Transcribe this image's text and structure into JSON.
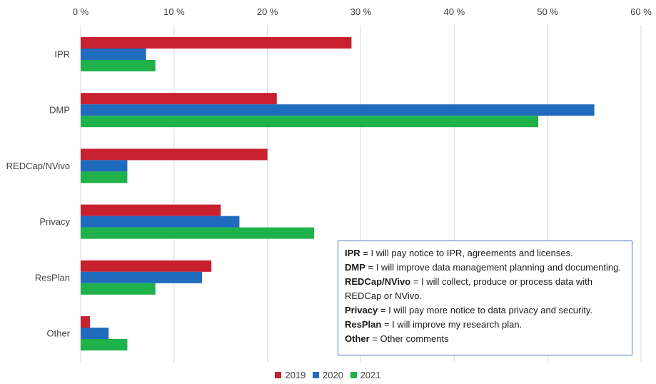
{
  "chart_data": {
    "type": "bar",
    "orientation": "horizontal",
    "categories": [
      "IPR",
      "DMP",
      "REDCap/NVivo",
      "Privacy",
      "ResPlan",
      "Other"
    ],
    "series": [
      {
        "name": "2019",
        "color": "#c8202e",
        "values": [
          29,
          21,
          20,
          15,
          14,
          1
        ]
      },
      {
        "name": "2020",
        "color": "#1f6cbf",
        "values": [
          7,
          55,
          5,
          17,
          13,
          3
        ]
      },
      {
        "name": "2021",
        "color": "#1fb14a",
        "values": [
          8,
          49,
          5,
          25,
          8,
          5
        ]
      }
    ],
    "x_ticks": [
      "0 %",
      "10 %",
      "20 %",
      "30 %",
      "40 %",
      "50 %",
      "60 %"
    ],
    "xlim": [
      0,
      60
    ],
    "x_axis_position": "top",
    "grid": true,
    "legend_position": "bottom",
    "title": "",
    "xlabel": "",
    "ylabel": ""
  },
  "notes": [
    {
      "term": "IPR",
      "text": " = I will pay notice to IPR, agreements and licenses."
    },
    {
      "term": "DMP",
      "text": " = I will improve data management planning and documenting."
    },
    {
      "term": "REDCap/NVivo",
      "text": " = I will collect, produce or process data with REDCap or NVivo."
    },
    {
      "term": "Privacy",
      "text": " = I will pay more notice to data privacy and security."
    },
    {
      "term": "ResPlan",
      "text": " = I will improve my research plan."
    },
    {
      "term": "Other",
      "text": " = Other comments"
    }
  ]
}
